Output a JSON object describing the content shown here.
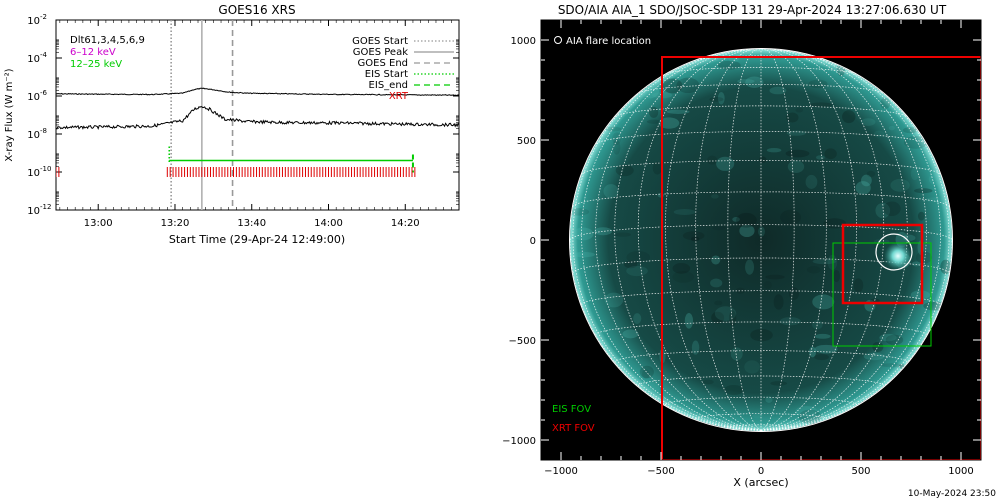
{
  "chart_data": [
    {
      "type": "line",
      "title": "GOES16 XRS",
      "xlabel": "Start Time (29-Apr-24 12:49:00)",
      "ylabel": "X-ray Flux (W m⁻²)",
      "ylog": true,
      "ylim": [
        1e-12,
        0.01
      ],
      "xlim_minutes": [
        0,
        105
      ],
      "x_ticks": [
        {
          "minute": 11,
          "label": "13:00"
        },
        {
          "minute": 31,
          "label": "13:20"
        },
        {
          "minute": 51,
          "label": "13:40"
        },
        {
          "minute": 71,
          "label": "14:00"
        },
        {
          "minute": 91,
          "label": "14:20"
        }
      ],
      "y_ticks": [
        {
          "exp": -2,
          "label": "10",
          "sup": "-2"
        },
        {
          "exp": -4,
          "label": "10",
          "sup": "-4"
        },
        {
          "exp": -6,
          "label": "10",
          "sup": "-6"
        },
        {
          "exp": -8,
          "label": "10",
          "sup": "-8"
        },
        {
          "exp": -10,
          "label": "10",
          "sup": "-10"
        },
        {
          "exp": -12,
          "label": "10",
          "sup": "-12"
        }
      ],
      "series": [
        {
          "color": "#000000",
          "x": [
            0,
            10,
            25,
            33,
            36,
            38,
            40,
            45,
            50,
            60,
            75,
            90,
            105
          ],
          "y": [
            1.3e-06,
            1.25e-06,
            1.2e-06,
            1.4e-06,
            2.2e-06,
            2.5e-06,
            2.3e-06,
            1.6e-06,
            1.4e-06,
            1.3e-06,
            1.2e-06,
            1.15e-06,
            1.1e-06
          ]
        },
        {
          "color": "#000000",
          "x": [
            0,
            10,
            25,
            33,
            36,
            38,
            40,
            44,
            50,
            60,
            75,
            90,
            105
          ],
          "y": [
            2.2e-08,
            2.3e-08,
            2.6e-08,
            5e-08,
            2e-07,
            3e-07,
            2e-07,
            6e-08,
            4.5e-08,
            4e-08,
            3.8e-08,
            3.3e-08,
            3e-08
          ]
        }
      ],
      "vlines": [
        {
          "minute": 30,
          "style": "dotted",
          "color": "#999999"
        },
        {
          "minute": 38,
          "style": "solid",
          "color": "#b0b0b0"
        },
        {
          "minute": 46,
          "style": "dashed",
          "color": "#999999"
        }
      ],
      "eis": {
        "start_minute": 29.5,
        "end_minute": 93,
        "flux": 4e-10,
        "color": "#00cc00"
      },
      "xrt_ticks": {
        "color": "#dd0000",
        "flux": 1e-10,
        "ranges": [
          [
            0,
            1
          ],
          [
            29,
            94
          ]
        ],
        "spacing": 0.75
      },
      "legend_left": [
        {
          "text": "Dlt61,3,4,5,6,9",
          "color": "#000000"
        },
        {
          "text": "6–12 keV",
          "color": "#cc00cc"
        },
        {
          "text": "12–25 keV",
          "color": "#00cc00"
        }
      ],
      "legend_right": [
        {
          "text": "GOES Start",
          "color": "#000000",
          "line": "dotted",
          "lineColor": "#999999"
        },
        {
          "text": "GOES Peak",
          "color": "#000000",
          "line": "solid",
          "lineColor": "#999999"
        },
        {
          "text": "GOES End",
          "color": "#000000",
          "line": "dashed",
          "lineColor": "#999999"
        },
        {
          "text": "EIS Start",
          "color": "#000000",
          "line": "dotted",
          "lineColor": "#00cc00"
        },
        {
          "text": "EIS_end",
          "color": "#000000",
          "line": "dashed",
          "lineColor": "#00cc00"
        },
        {
          "text": "XRT",
          "color": "#dd0000",
          "line": "none",
          "lineColor": "#dd0000"
        }
      ]
    },
    {
      "type": "image",
      "title": "SDO/AIA AIA_1 SDO/JSOC-SDP 131 29-Apr-2024 13:27:06.630 UT",
      "xlabel": "X (arcsec)",
      "ylabel": "",
      "xlim": [
        -1100,
        1100
      ],
      "ylim": [
        -1100,
        1100
      ],
      "x_ticks": [
        -1000,
        -500,
        0,
        500,
        1000
      ],
      "y_ticks": [
        -1000,
        -500,
        0,
        500,
        1000
      ],
      "solar_radius_arcsec": 955,
      "flare_location": {
        "x": 665,
        "y": -60,
        "radius": 90
      },
      "flare_label": "AIA flare location",
      "eis_fov": {
        "x1": 360,
        "x2": 850,
        "y1": -530,
        "y2": -15,
        "color": "#00cc00"
      },
      "xrt_fov_large": {
        "x1": -495,
        "x2": 1100,
        "y1": -1100,
        "y2": 915,
        "color": "#ee0000"
      },
      "xrt_fov_small": {
        "x1": 410,
        "x2": 805,
        "y1": -315,
        "y2": 75,
        "color": "#ee0000"
      },
      "legend": [
        {
          "text": "EIS FOV",
          "color": "#00cc00"
        },
        {
          "text": "XRT FOV",
          "color": "#ee0000"
        }
      ]
    }
  ],
  "footer": {
    "date": "10-May-2024 23:50"
  }
}
